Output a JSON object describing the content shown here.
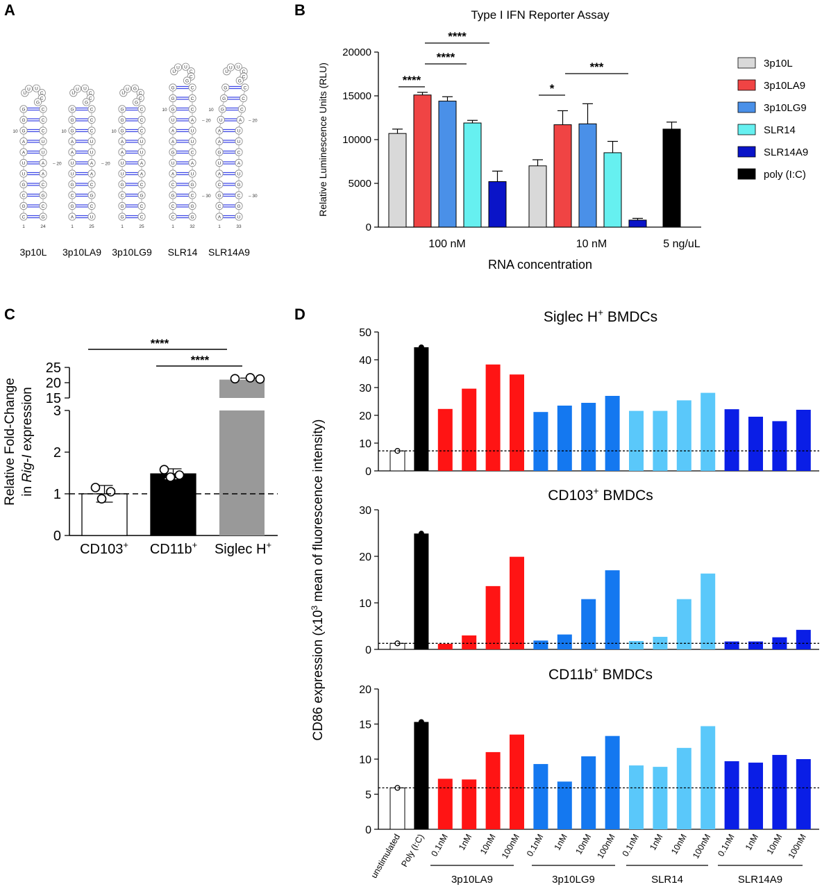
{
  "panels": {
    "A": "A",
    "B": "B",
    "C": "C",
    "D": "D"
  },
  "structures": {
    "names": [
      "3p10L",
      "3p10LA9",
      "3p10LG9",
      "SLR14",
      "SLR14A9"
    ],
    "loops": [
      "U-C",
      "U-C",
      "G-C",
      "U-C",
      "U-C"
    ],
    "stems": [
      "CGCGUUAAGGG",
      "AGCGUUAAGGG",
      "GGCGUUAAGGG",
      "CCGCAUGAAUGGG",
      "ACGCAUGAAUGGG"
    ],
    "numbers": [
      {
        "bottom_left": "1",
        "bottom_right": "24",
        "mid": "20",
        "top": "10"
      },
      {
        "bottom_left": "1",
        "bottom_right": "25",
        "mid": "20",
        "top": "10"
      },
      {
        "bottom_left": "1",
        "bottom_right": "25",
        "mid": "",
        "top": "10"
      },
      {
        "bottom_left": "1",
        "bottom_right": "32",
        "mid": "20",
        "top": "10",
        "mid2": "30"
      },
      {
        "bottom_left": "1",
        "bottom_right": "33",
        "mid": "20",
        "top": "10",
        "mid2": "30"
      }
    ]
  },
  "chart_data": [
    {
      "panel": "B",
      "type": "bar",
      "title": "Type I IFN Reporter Assay",
      "xlabel": "RNA concentration",
      "ylabel": "Relative Luminescence Units (RLU)",
      "ylim": [
        0,
        20000
      ],
      "yticks": [
        "0",
        "5000",
        "10000",
        "15000",
        "20000"
      ],
      "groups": [
        "100 nM",
        "10 nM",
        "5 ng/uL"
      ],
      "series": [
        {
          "name": "3p10L",
          "color": "#d9d9d9",
          "values": [
            10700,
            7000,
            null
          ],
          "errors": [
            500,
            700,
            null
          ]
        },
        {
          "name": "3p10LA9",
          "color": "#f04444",
          "values": [
            15100,
            11700,
            null
          ],
          "errors": [
            300,
            1600,
            null
          ]
        },
        {
          "name": "3p10LG9",
          "color": "#4a90e8",
          "values": [
            14400,
            11800,
            null
          ],
          "errors": [
            500,
            2300,
            null
          ]
        },
        {
          "name": "SLR14",
          "color": "#66f0f0",
          "values": [
            11900,
            8500,
            null
          ],
          "errors": [
            300,
            1300,
            null
          ]
        },
        {
          "name": "SLR14A9",
          "color": "#0a14c8",
          "values": [
            5200,
            800,
            null
          ],
          "errors": [
            1200,
            200,
            null
          ]
        },
        {
          "name": "poly (I:C)",
          "color": "#000000",
          "values": [
            null,
            null,
            11200
          ],
          "errors": [
            null,
            null,
            800
          ]
        }
      ],
      "significance": [
        "****",
        "****",
        "****",
        "*",
        "***"
      ]
    },
    {
      "panel": "C",
      "type": "bar",
      "ylabel_line1": "Relative Fold-Change",
      "ylabel_line2_pre": "in ",
      "ylabel_line2_gene": "Rig-I",
      "ylabel_line2_post": " expression",
      "ylim_lower": [
        0,
        3
      ],
      "ylim_upper": [
        15,
        25
      ],
      "yticks_lower": [
        "0",
        "1",
        "2",
        "3"
      ],
      "yticks_upper": [
        "15",
        "20",
        "25"
      ],
      "categories": [
        "CD103",
        "CD11b",
        "Siglec H"
      ],
      "category_superscript": "+",
      "values": [
        1.0,
        1.48,
        21.0
      ],
      "errors": [
        0.2,
        0.12,
        0.5
      ],
      "points": [
        [
          1.15,
          0.88,
          1.05
        ],
        [
          1.58,
          1.4,
          1.45
        ],
        [
          21.3,
          21.6,
          21.2
        ]
      ],
      "colors": [
        "#ffffff",
        "#000000",
        "#999999"
      ],
      "reference_line": 1,
      "significance": [
        "****",
        "****"
      ]
    },
    {
      "panel": "D",
      "type": "bar",
      "ylabel": "CD86 expression (x10",
      "ylabel_sup": "3",
      "ylabel_post": " mean of fluorescence intensity)",
      "categories": [
        "unstimulated",
        "Poly (I:C)",
        "0.1nM",
        "1nM",
        "10nM",
        "100nM",
        "0.1nM",
        "1nM",
        "10nM",
        "100nM",
        "0.1nM",
        "1nM",
        "10nM",
        "100nM",
        "0.1nM",
        "1nM",
        "10nM",
        "100nM"
      ],
      "group_labels": [
        "3p10LA9",
        "3p10LG9",
        "SLR14",
        "SLR14A9"
      ],
      "bar_colors": [
        "#ffffff",
        "#000000",
        "#ff1414",
        "#ff1414",
        "#ff1414",
        "#ff1414",
        "#1478f0",
        "#1478f0",
        "#1478f0",
        "#1478f0",
        "#5ac8fa",
        "#5ac8fa",
        "#5ac8fa",
        "#5ac8fa",
        "#0a1ee6",
        "#0a1ee6",
        "#0a1ee6",
        "#0a1ee6"
      ],
      "subplots": [
        {
          "title_pre": "Siglec H",
          "title_post": " BMDCs",
          "ylim": [
            0,
            50
          ],
          "yticks": [
            "0",
            "10",
            "20",
            "30",
            "40",
            "50"
          ],
          "values": [
            7.2,
            44.5,
            22.3,
            29.6,
            38.3,
            34.7,
            21.2,
            23.5,
            24.5,
            27.0,
            21.6,
            21.6,
            25.4,
            28.1,
            22.2,
            19.5,
            17.9,
            22.0
          ],
          "reference_line": 7.2
        },
        {
          "title_pre": "CD103",
          "title_post": " BMDCs",
          "ylim": [
            0,
            30
          ],
          "yticks": [
            "0",
            "10",
            "20",
            "30"
          ],
          "values": [
            1.3,
            24.9,
            1.2,
            3.0,
            13.6,
            19.9,
            1.9,
            3.2,
            10.8,
            17.0,
            1.8,
            2.7,
            10.8,
            16.3,
            1.7,
            1.7,
            2.6,
            4.2
          ],
          "reference_line": 1.3
        },
        {
          "title_pre": "CD11b",
          "title_post": " BMDCs",
          "ylim": [
            0,
            20
          ],
          "yticks": [
            "0",
            "5",
            "10",
            "15",
            "20"
          ],
          "values": [
            5.9,
            15.3,
            7.2,
            7.1,
            11.0,
            13.5,
            9.3,
            6.8,
            10.4,
            13.3,
            9.1,
            8.9,
            11.6,
            14.7,
            9.7,
            9.5,
            10.6,
            10.0
          ],
          "reference_line": 5.9
        }
      ]
    }
  ]
}
